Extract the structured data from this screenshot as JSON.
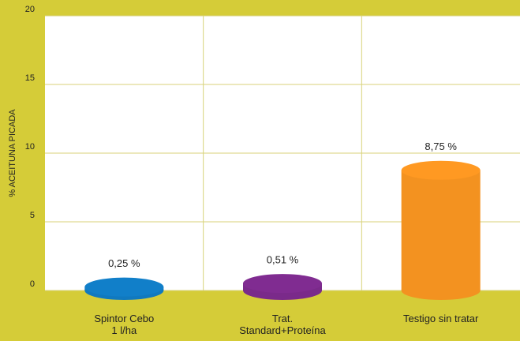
{
  "chart_data": {
    "type": "bar",
    "y_label": "% ACEITUNA PICADA",
    "categories": [
      "Spintor Cebo\n1 l/ha",
      "Trat.\nStandard+Proteína",
      "Testigo sin tratar"
    ],
    "values": [
      0.25,
      0.51,
      8.75
    ],
    "value_labels": [
      "0,25 %",
      "0,51 %",
      "8,75 %"
    ],
    "colors": [
      "#1079bf",
      "#7a2a8a",
      "#f39220"
    ],
    "ylim": [
      0,
      20
    ],
    "yticks": [
      0,
      5,
      10,
      15,
      20
    ],
    "grid": true
  }
}
